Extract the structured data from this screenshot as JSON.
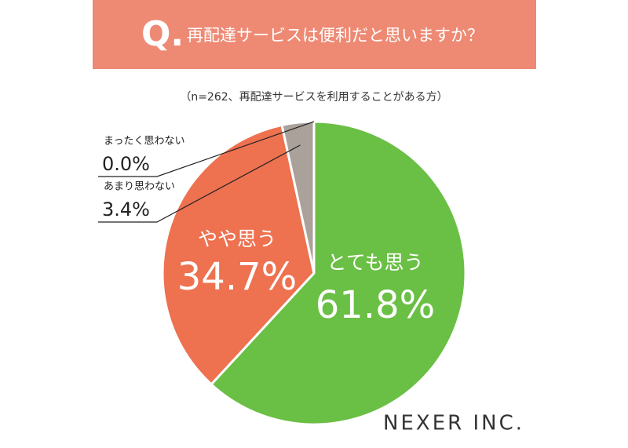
{
  "chart_data": {
    "type": "pie",
    "title_mark": "Q.",
    "title": "再配達サービスは便利だと思いますか？",
    "subtitle": "（n=262、再配達サービスを利用することがある方）",
    "categories": [
      "とても思う",
      "やや思う",
      "あまり思わない",
      "まったく思わない"
    ],
    "values": [
      61.8,
      34.7,
      3.4,
      0.0
    ],
    "value_labels": [
      "61.8%",
      "34.7%",
      "3.4%",
      "0.0%"
    ],
    "colors": [
      "#6abf45",
      "#ee7150",
      "#aaa19b",
      "#8a8a8a"
    ]
  },
  "brand": "NEXER INC."
}
